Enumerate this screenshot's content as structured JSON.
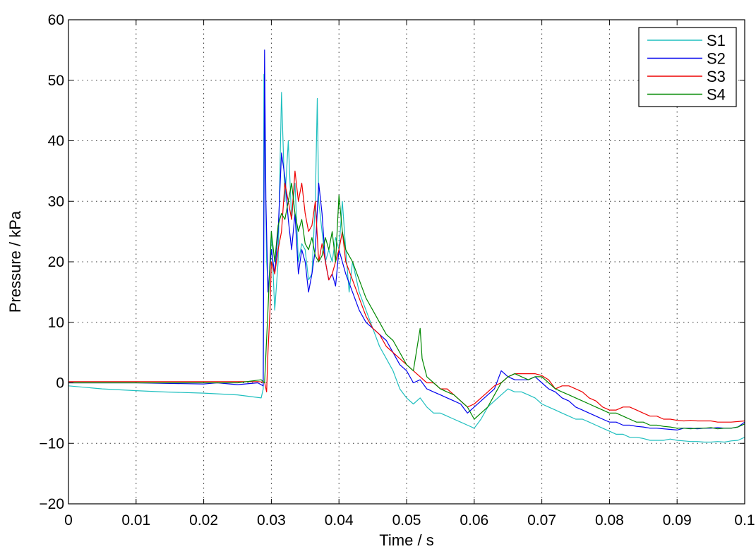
{
  "chart_data": {
    "type": "line",
    "xlabel": "Time / s",
    "ylabel": "Pressure / kPa",
    "xlim": [
      0,
      0.1
    ],
    "ylim": [
      -20,
      60
    ],
    "x_ticks": [
      0,
      0.01,
      0.02,
      0.03,
      0.04,
      0.05,
      0.06,
      0.07,
      0.08,
      0.09,
      0.1
    ],
    "y_ticks": [
      -20,
      -10,
      0,
      10,
      20,
      30,
      40,
      50,
      60
    ],
    "x_tick_labels": [
      "0",
      "0.01",
      "0.02",
      "0.03",
      "0.04",
      "0.05",
      "0.06",
      "0.07",
      "0.08",
      "0.09",
      "0.1"
    ],
    "y_tick_labels": [
      "−20",
      "−10",
      "0",
      "10",
      "20",
      "30",
      "40",
      "50",
      "60"
    ],
    "grid": true,
    "legend_position": "top-right",
    "series": [
      {
        "name": "S1",
        "color": "#1fbfbf",
        "x": [
          0,
          0.005,
          0.01,
          0.014,
          0.02,
          0.025,
          0.0285,
          0.0288,
          0.0289,
          0.0291,
          0.0293,
          0.0296,
          0.03,
          0.0305,
          0.031,
          0.0315,
          0.032,
          0.0325,
          0.033,
          0.0335,
          0.034,
          0.0345,
          0.035,
          0.0355,
          0.036,
          0.0365,
          0.0368,
          0.037,
          0.0375,
          0.038,
          0.0385,
          0.039,
          0.0395,
          0.04,
          0.0405,
          0.041,
          0.0415,
          0.042,
          0.043,
          0.044,
          0.045,
          0.046,
          0.047,
          0.048,
          0.049,
          0.05,
          0.051,
          0.052,
          0.053,
          0.054,
          0.055,
          0.056,
          0.057,
          0.058,
          0.059,
          0.06,
          0.061,
          0.062,
          0.063,
          0.064,
          0.065,
          0.066,
          0.067,
          0.068,
          0.069,
          0.07,
          0.071,
          0.072,
          0.073,
          0.074,
          0.075,
          0.076,
          0.077,
          0.078,
          0.079,
          0.08,
          0.081,
          0.082,
          0.083,
          0.084,
          0.085,
          0.086,
          0.087,
          0.088,
          0.089,
          0.09,
          0.091,
          0.092,
          0.093,
          0.094,
          0.095,
          0.096,
          0.097,
          0.098,
          0.099,
          0.1
        ],
        "y": [
          -0.5,
          -1,
          -1.3,
          -1.5,
          -1.7,
          -2,
          -2.5,
          -1,
          51,
          35,
          20,
          15,
          25,
          12,
          20,
          48,
          30,
          40,
          27,
          33,
          20,
          23,
          22,
          17,
          18,
          30,
          47,
          30,
          25,
          20,
          22,
          20,
          24,
          22,
          30,
          22,
          15,
          20,
          15,
          12,
          9,
          6,
          4,
          2,
          -1,
          -2.5,
          -3.5,
          -2.5,
          -4,
          -5,
          -5,
          -5.5,
          -6,
          -6.5,
          -7,
          -7.5,
          -6,
          -4,
          -3,
          -2,
          -1,
          -1.5,
          -1.5,
          -2,
          -2.5,
          -3.5,
          -4,
          -4.5,
          -5,
          -5.5,
          -6,
          -6,
          -6.5,
          -7,
          -7.5,
          -8,
          -8.5,
          -8.5,
          -9,
          -9,
          -9.2,
          -9.5,
          -9.5,
          -9.5,
          -9.3,
          -9.5,
          -9.6,
          -9.7,
          -9.7,
          -9.8,
          -9.8,
          -9.7,
          -9.8,
          -9.6,
          -9.5,
          -9
        ]
      },
      {
        "name": "S2",
        "color": "#0000ee",
        "x": [
          0,
          0.01,
          0.02,
          0.022,
          0.025,
          0.028,
          0.0288,
          0.029,
          0.0292,
          0.0295,
          0.03,
          0.0305,
          0.031,
          0.0315,
          0.032,
          0.0325,
          0.033,
          0.0335,
          0.034,
          0.0345,
          0.035,
          0.0355,
          0.036,
          0.0365,
          0.037,
          0.0375,
          0.038,
          0.0385,
          0.039,
          0.0395,
          0.04,
          0.0405,
          0.041,
          0.042,
          0.043,
          0.044,
          0.045,
          0.046,
          0.047,
          0.048,
          0.049,
          0.05,
          0.051,
          0.052,
          0.053,
          0.054,
          0.055,
          0.056,
          0.057,
          0.058,
          0.059,
          0.06,
          0.061,
          0.062,
          0.063,
          0.064,
          0.065,
          0.066,
          0.067,
          0.068,
          0.069,
          0.07,
          0.071,
          0.072,
          0.073,
          0.074,
          0.075,
          0.076,
          0.077,
          0.078,
          0.079,
          0.08,
          0.081,
          0.082,
          0.083,
          0.084,
          0.085,
          0.086,
          0.087,
          0.088,
          0.089,
          0.09,
          0.091,
          0.092,
          0.093,
          0.094,
          0.095,
          0.096,
          0.097,
          0.098,
          0.099,
          0.1
        ],
        "y": [
          0,
          0,
          -0.2,
          0,
          -0.3,
          0,
          -0.5,
          55,
          30,
          15,
          22,
          18,
          25,
          38,
          34,
          27,
          22,
          28,
          18,
          22,
          20,
          15,
          18,
          22,
          33,
          28,
          20,
          17,
          18,
          16,
          22,
          20,
          18,
          15,
          12,
          10,
          9,
          8,
          7,
          5,
          3,
          2,
          0,
          0.5,
          -1,
          -1.5,
          -2,
          -2.5,
          -3,
          -3.5,
          -5,
          -4,
          -3,
          -2,
          -1,
          2,
          1,
          0.5,
          0.5,
          0.5,
          1,
          0,
          -1,
          -1.5,
          -2.5,
          -3,
          -4,
          -4.5,
          -5,
          -5.5,
          -6,
          -6.5,
          -6.5,
          -7,
          -7,
          -7.2,
          -7.3,
          -7.5,
          -7.5,
          -7.6,
          -7.7,
          -7.8,
          -7.5,
          -7.5,
          -7.6,
          -7.5,
          -7.5,
          -7.4,
          -7.5,
          -7.5,
          -7.3,
          -6.5
        ]
      },
      {
        "name": "S3",
        "color": "#ee0000",
        "x": [
          0,
          0.01,
          0.02,
          0.025,
          0.028,
          0.029,
          0.0293,
          0.0295,
          0.0298,
          0.03,
          0.0305,
          0.031,
          0.0315,
          0.032,
          0.0325,
          0.033,
          0.0335,
          0.034,
          0.0345,
          0.035,
          0.0355,
          0.036,
          0.0365,
          0.037,
          0.0375,
          0.038,
          0.0385,
          0.039,
          0.0395,
          0.04,
          0.0405,
          0.041,
          0.042,
          0.043,
          0.044,
          0.045,
          0.046,
          0.047,
          0.048,
          0.049,
          0.05,
          0.051,
          0.052,
          0.053,
          0.054,
          0.055,
          0.056,
          0.057,
          0.058,
          0.059,
          0.06,
          0.061,
          0.062,
          0.063,
          0.064,
          0.065,
          0.066,
          0.067,
          0.068,
          0.069,
          0.07,
          0.071,
          0.072,
          0.073,
          0.074,
          0.075,
          0.076,
          0.077,
          0.078,
          0.079,
          0.08,
          0.081,
          0.082,
          0.083,
          0.084,
          0.085,
          0.086,
          0.087,
          0.088,
          0.089,
          0.09,
          0.091,
          0.092,
          0.093,
          0.094,
          0.095,
          0.096,
          0.097,
          0.098,
          0.099,
          0.1
        ],
        "y": [
          0.2,
          0.2,
          0.2,
          0.2,
          0.2,
          0.1,
          -1.5,
          5,
          12,
          20,
          18,
          22,
          25,
          33,
          30,
          27,
          35,
          30,
          33,
          28,
          25,
          26,
          30,
          20,
          23,
          20,
          17,
          18,
          20,
          22,
          25,
          20,
          17,
          14,
          11,
          9,
          8,
          6,
          5,
          4,
          3,
          2,
          1,
          0,
          0,
          -1,
          -1,
          -2,
          -3,
          -4,
          -3.5,
          -2.5,
          -1.5,
          -0.5,
          0,
          1,
          1.5,
          1.5,
          1.5,
          1.5,
          1.2,
          0.5,
          -1,
          -0.5,
          -0.5,
          -1,
          -1.5,
          -2.5,
          -3,
          -4,
          -4.5,
          -4.5,
          -4,
          -4,
          -4.5,
          -5,
          -5.5,
          -5.5,
          -6,
          -6,
          -6.2,
          -6.3,
          -6.2,
          -6.3,
          -6.3,
          -6.3,
          -6.5,
          -6.5,
          -6.5,
          -6.4,
          -6.3
        ]
      },
      {
        "name": "S4",
        "color": "#008800",
        "x": [
          0,
          0.01,
          0.02,
          0.025,
          0.0285,
          0.029,
          0.0295,
          0.03,
          0.0305,
          0.031,
          0.0315,
          0.032,
          0.0325,
          0.033,
          0.0335,
          0.034,
          0.0345,
          0.035,
          0.0355,
          0.036,
          0.0365,
          0.037,
          0.0375,
          0.038,
          0.0385,
          0.039,
          0.0395,
          0.04,
          0.0405,
          0.041,
          0.042,
          0.043,
          0.044,
          0.045,
          0.046,
          0.047,
          0.048,
          0.049,
          0.05,
          0.051,
          0.052,
          0.0523,
          0.053,
          0.054,
          0.055,
          0.056,
          0.057,
          0.058,
          0.059,
          0.06,
          0.061,
          0.062,
          0.063,
          0.064,
          0.065,
          0.066,
          0.067,
          0.068,
          0.069,
          0.07,
          0.071,
          0.072,
          0.073,
          0.074,
          0.075,
          0.076,
          0.077,
          0.078,
          0.079,
          0.08,
          0.081,
          0.082,
          0.083,
          0.084,
          0.085,
          0.086,
          0.087,
          0.088,
          0.089,
          0.09,
          0.091,
          0.092,
          0.093,
          0.094,
          0.095,
          0.096,
          0.097,
          0.098,
          0.099,
          0.1
        ],
        "y": [
          0,
          0,
          0,
          0,
          0.5,
          0,
          12,
          25,
          20,
          26,
          28,
          27,
          30,
          33,
          28,
          25,
          27,
          23,
          22,
          24,
          21,
          20,
          21,
          24,
          22,
          25,
          20,
          31,
          25,
          22,
          20,
          17,
          14,
          12,
          10,
          8,
          7,
          5,
          3,
          2,
          9,
          4,
          1,
          0,
          -1,
          -1.5,
          -2,
          -3,
          -4,
          -6,
          -5,
          -4,
          -2,
          0,
          1,
          1.5,
          1,
          0.5,
          1,
          1,
          0,
          -1,
          -1.5,
          -2,
          -2.5,
          -3,
          -3.5,
          -4,
          -4.5,
          -5,
          -5,
          -5.5,
          -6,
          -6.5,
          -6.5,
          -7,
          -7,
          -7.2,
          -7.3,
          -7.5,
          -7.5,
          -7.6,
          -7.5,
          -7.5,
          -7.4,
          -7.6,
          -7.5,
          -7.5,
          -7.3,
          -6.8
        ]
      }
    ]
  }
}
